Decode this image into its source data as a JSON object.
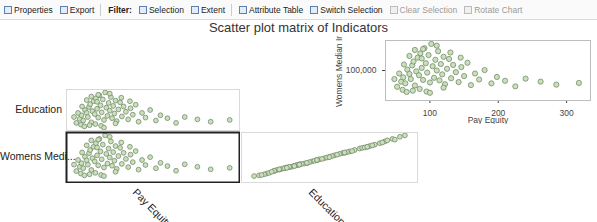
{
  "toolbar": [
    "Properties",
    "Export",
    "Filter:",
    "Selection",
    "Extent",
    "Attribute Table",
    "Switch Selection",
    "Clear Selection",
    "Rotate Chart"
  ],
  "chart_data": {
    "type": "scatter_matrix",
    "title": "Scatter plot matrix of Indicators",
    "color": "#c8e2b8",
    "marker": "circle",
    "tick_labels": false,
    "variables": [
      {
        "label": "Pay Equity",
        "lim": [
          35,
          335
        ],
        "values": [
          52,
          58,
          61,
          64,
          67,
          70,
          72,
          74,
          76,
          78,
          80,
          82,
          84,
          86,
          88,
          90,
          92,
          94,
          96,
          98,
          100,
          102,
          104,
          106,
          108,
          110,
          112,
          114,
          116,
          118,
          120,
          122,
          125,
          128,
          131,
          134,
          138,
          142,
          146,
          150,
          155,
          160,
          166,
          172,
          180,
          190,
          198,
          210,
          225,
          240,
          262,
          285,
          318,
          60,
          66,
          75,
          85,
          95,
          55,
          70,
          90,
          110,
          100,
          48,
          62,
          130,
          88,
          78,
          120,
          145
        ]
      },
      {
        "label": "Education",
        "lim": [
          5,
          75
        ],
        "values": [
          18,
          25,
          31,
          22,
          40,
          35,
          28,
          45,
          50,
          19,
          38,
          55,
          33,
          60,
          42,
          27,
          65,
          48,
          36,
          58,
          23,
          70,
          44,
          30,
          52,
          39,
          62,
          26,
          47,
          34,
          56,
          21,
          41,
          53,
          29,
          46,
          37,
          24,
          43,
          32,
          49,
          20,
          35,
          27,
          40,
          22,
          31,
          26,
          18,
          28,
          24,
          20,
          23,
          15,
          12,
          14,
          16,
          13,
          35,
          57,
          66,
          68,
          10,
          28,
          46,
          61,
          54,
          63,
          17,
          55
        ]
      },
      {
        "label": "Womens Medi...",
        "lim": [
          30000,
          170000
        ],
        "values": [
          62000,
          74000,
          84000,
          70000,
          102000,
          92000,
          80000,
          112000,
          121000,
          65000,
          98000,
          130000,
          89000,
          140000,
          106000,
          78000,
          152000,
          117000,
          95000,
          136000,
          72000,
          162000,
          110000,
          83000,
          125000,
          100000,
          145000,
          77000,
          115000,
          91000,
          132000,
          68000,
          104000,
          127000,
          82000,
          113000,
          96000,
          73000,
          108000,
          87000,
          118000,
          66000,
          93000,
          79000,
          101000,
          70000,
          85000,
          76000,
          63000,
          81000,
          74000,
          67000,
          71000,
          55000,
          50000,
          53000,
          57000,
          51000,
          93000,
          134000,
          150000,
          158000,
          48000,
          80000,
          114000,
          142000,
          128000,
          148000,
          60000,
          130000
        ]
      }
    ],
    "inset": {
      "type": "scatter",
      "xlabel": "Pay Equity",
      "ylabel": "Womens Median In",
      "xlim": [
        35,
        335
      ],
      "ylim": [
        30000,
        170000
      ],
      "xticks": [
        100,
        200,
        300
      ],
      "yticks": [
        {
          "value": 100000,
          "label": "100,000"
        }
      ]
    }
  }
}
